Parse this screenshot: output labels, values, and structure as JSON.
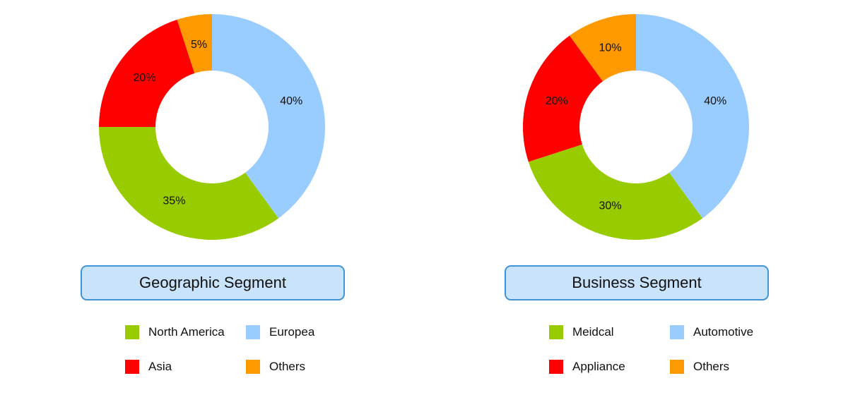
{
  "chart_data": [
    {
      "type": "pie",
      "donut": true,
      "title": "Geographic Segment",
      "slices": [
        {
          "name": "Europea",
          "value": 40,
          "label": "40%",
          "color": "#99ccff"
        },
        {
          "name": "North America",
          "value": 35,
          "label": "35%",
          "color": "#99cc00"
        },
        {
          "name": "Asia",
          "value": 20,
          "label": "20%",
          "color": "#ff0000"
        },
        {
          "name": "Others",
          "value": 5,
          "label": "5%",
          "color": "#ff9900"
        }
      ],
      "legend_order": [
        "North America",
        "Europea",
        "Asia",
        "Others"
      ],
      "legend_position": "bottom"
    },
    {
      "type": "pie",
      "donut": true,
      "title": "Business Segment",
      "slices": [
        {
          "name": "Automotive",
          "value": 40,
          "label": "40%",
          "color": "#99ccff"
        },
        {
          "name": "Meidcal",
          "value": 30,
          "label": "30%",
          "color": "#99cc00"
        },
        {
          "name": "Appliance",
          "value": 20,
          "label": "20%",
          "color": "#ff0000"
        },
        {
          "name": "Others",
          "value": 10,
          "label": "10%",
          "color": "#ff9900"
        }
      ],
      "legend_order": [
        "Meidcal",
        "Automotive",
        "Appliance",
        "Others"
      ],
      "legend_position": "bottom"
    }
  ]
}
